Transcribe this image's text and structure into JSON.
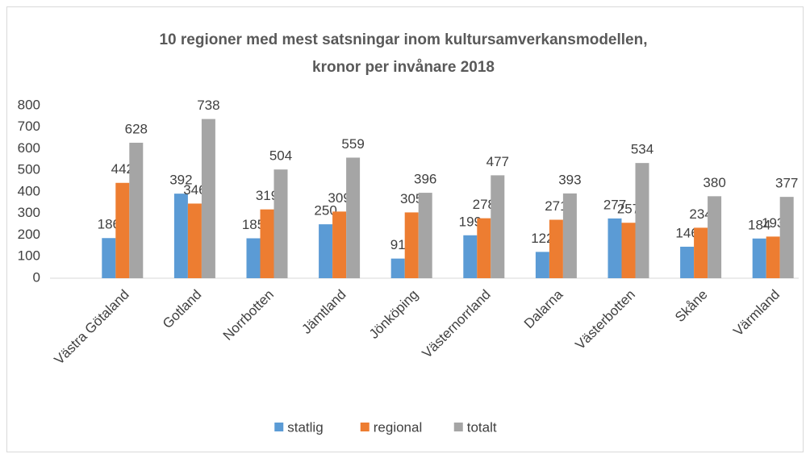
{
  "chart_data": {
    "type": "bar",
    "title": [
      "10 regioner med mest satsningar inom kultursamverkansmodellen,",
      "kronor per invånare 2018"
    ],
    "categories": [
      "Västra Götaland",
      "Gotland",
      "Norrbotten",
      "Jämtland",
      "Jönköping",
      "Västernorrland",
      "Dalarna",
      "Västerbotten",
      "Skåne",
      "Värmland"
    ],
    "series": [
      {
        "name": "statlig",
        "color": "#5b9bd5",
        "values": [
          186,
          392,
          185,
          250,
          91,
          199,
          122,
          277,
          146,
          184
        ]
      },
      {
        "name": "regional",
        "color": "#ed7d31",
        "values": [
          442,
          346,
          319,
          309,
          305,
          278,
          271,
          257,
          234,
          193
        ]
      },
      {
        "name": "totalt",
        "color": "#a5a5a5",
        "values": [
          628,
          738,
          504,
          559,
          396,
          477,
          393,
          534,
          380,
          377
        ]
      }
    ],
    "ylim": [
      0,
      800
    ],
    "yticks": [
      0,
      100,
      200,
      300,
      400,
      500,
      600,
      700,
      800
    ],
    "grid": false,
    "legend": "bottom"
  }
}
